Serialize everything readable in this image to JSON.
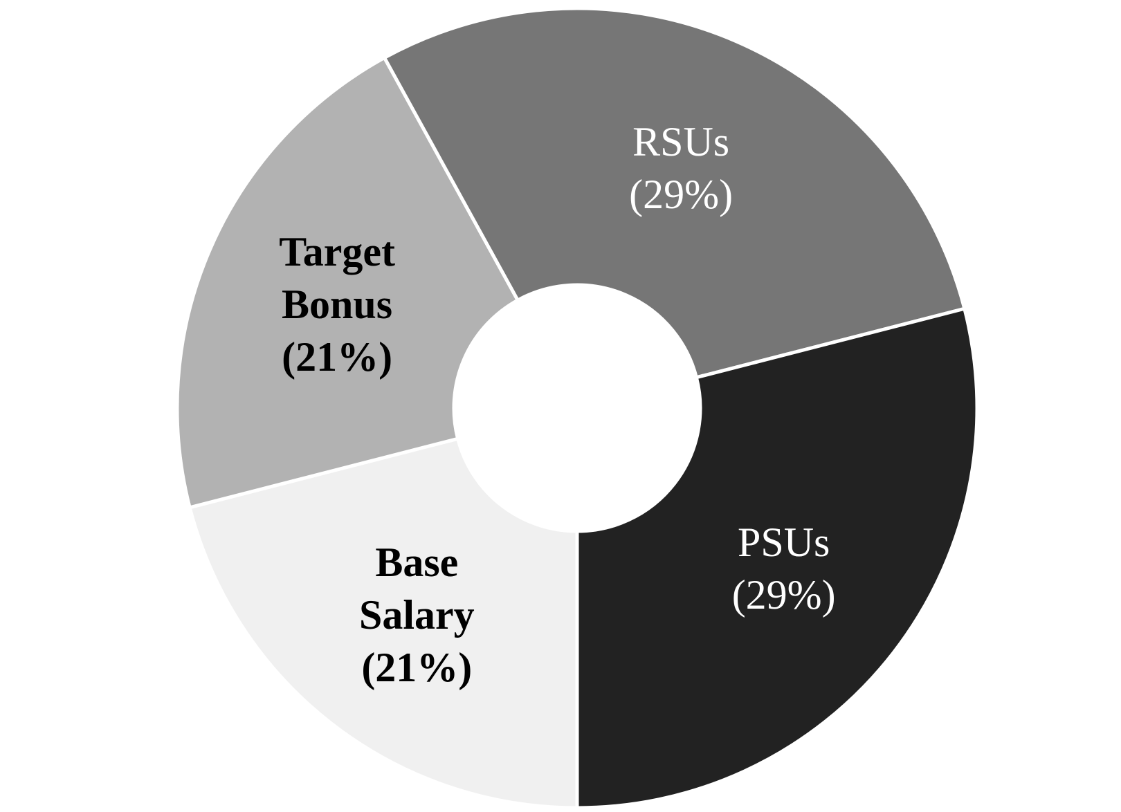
{
  "chart_data": {
    "type": "donut",
    "categories": [
      "Base Salary",
      "Target Bonus",
      "RSUs",
      "PSUs"
    ],
    "values": [
      21,
      21,
      29,
      29
    ],
    "value_labels": [
      "(21%)",
      "(21%)",
      "(29%)",
      "(29%)"
    ],
    "colors": [
      "#f0f0f0",
      "#b2b2b2",
      "#767676",
      "#222222"
    ]
  }
}
